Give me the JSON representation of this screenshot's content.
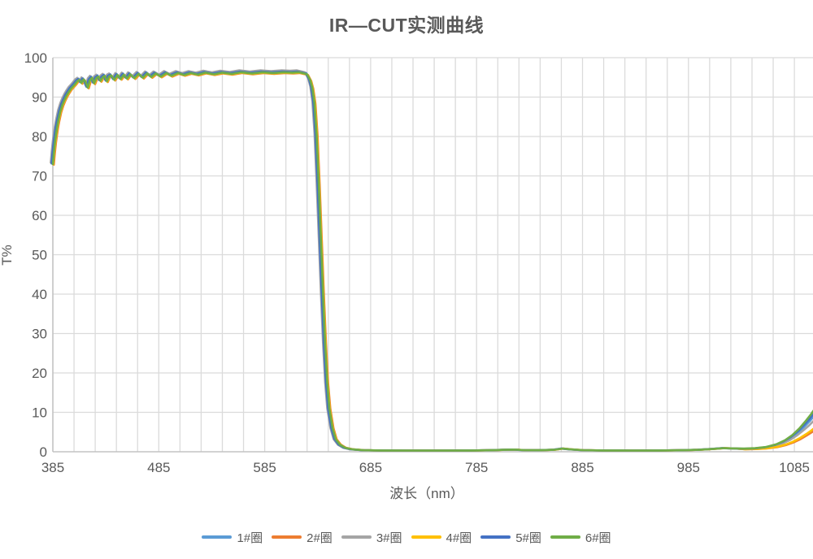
{
  "chart_data": {
    "type": "line",
    "title": "IR—CUT实测曲线",
    "xlabel": "波长（nm）",
    "ylabel": "T%",
    "xlim": [
      385,
      1104
    ],
    "ylim": [
      0,
      100
    ],
    "x_ticks": [
      385,
      485,
      585,
      685,
      785,
      885,
      985,
      1085
    ],
    "y_ticks": [
      0,
      10,
      20,
      30,
      40,
      50,
      60,
      70,
      80,
      90,
      100
    ],
    "x_minor_grid_step_nm": 20,
    "grid": true,
    "legend_position": "bottom",
    "colors": {
      "grid": "#DBDBDB",
      "axis": "#C3C3C3",
      "text": "#595959",
      "background": "#FFFFFF"
    },
    "series": [
      {
        "name": "1#圈",
        "color": "#5B9BD5",
        "dx": -0.8,
        "dy": 0.3,
        "tail": 0.82
      },
      {
        "name": "2#圈",
        "color": "#ED7D31",
        "dx": 0.9,
        "dy": -0.2,
        "tail": 0.5
      },
      {
        "name": "3#圈",
        "color": "#A5A5A5",
        "dx": -2.0,
        "dy": 0.5,
        "tail": 0.68
      },
      {
        "name": "4#圈",
        "color": "#FFC000",
        "dx": 0.4,
        "dy": -0.1,
        "tail": 0.55
      },
      {
        "name": "5#圈",
        "color": "#4472C4",
        "dx": -1.2,
        "dy": 0.2,
        "tail": 0.88
      },
      {
        "name": "6#圈",
        "color": "#70AD47",
        "dx": 0.0,
        "dy": 0.0,
        "tail": 1.0
      }
    ],
    "base_curve": [
      [
        385,
        73
      ],
      [
        386,
        76
      ],
      [
        387,
        78.5
      ],
      [
        388,
        80.5
      ],
      [
        389,
        82.3
      ],
      [
        390,
        83.8
      ],
      [
        392,
        86.3
      ],
      [
        394,
        88
      ],
      [
        396,
        89.3
      ],
      [
        398,
        90.4
      ],
      [
        400,
        91.3
      ],
      [
        402,
        92.1
      ],
      [
        404,
        92.7
      ],
      [
        406,
        93.3
      ],
      [
        408,
        94.0
      ],
      [
        410,
        94.4
      ],
      [
        412,
        93.6
      ],
      [
        414,
        94.5
      ],
      [
        416,
        93.8
      ],
      [
        418,
        92.4
      ],
      [
        420,
        94.3
      ],
      [
        422,
        94.9
      ],
      [
        424,
        93.5
      ],
      [
        426,
        94.8
      ],
      [
        428,
        95.2
      ],
      [
        430,
        94.1
      ],
      [
        432,
        95.0
      ],
      [
        434,
        95.4
      ],
      [
        436,
        94.0
      ],
      [
        438,
        95.2
      ],
      [
        440,
        95.5
      ],
      [
        443,
        94.4
      ],
      [
        446,
        95.6
      ],
      [
        449,
        94.6
      ],
      [
        452,
        95.7
      ],
      [
        455,
        94.7
      ],
      [
        458,
        95.8
      ],
      [
        462,
        94.8
      ],
      [
        466,
        95.9
      ],
      [
        470,
        94.9
      ],
      [
        474,
        96.0
      ],
      [
        478,
        95.1
      ],
      [
        482,
        96.0
      ],
      [
        487,
        95.2
      ],
      [
        492,
        96.1
      ],
      [
        497,
        95.4
      ],
      [
        503,
        96.1
      ],
      [
        509,
        95.6
      ],
      [
        515,
        96.1
      ],
      [
        522,
        95.7
      ],
      [
        529,
        96.2
      ],
      [
        537,
        95.8
      ],
      [
        545,
        96.2
      ],
      [
        554,
        95.9
      ],
      [
        563,
        96.3
      ],
      [
        573,
        96.0
      ],
      [
        583,
        96.3
      ],
      [
        593,
        96.1
      ],
      [
        603,
        96.3
      ],
      [
        611,
        96.2
      ],
      [
        617,
        96.3
      ],
      [
        622,
        96.0
      ],
      [
        625,
        95.8
      ],
      [
        628,
        94.3
      ],
      [
        630,
        92.3
      ],
      [
        632,
        88.5
      ],
      [
        634,
        80.5
      ],
      [
        636,
        68
      ],
      [
        638,
        54
      ],
      [
        640,
        40
      ],
      [
        642,
        27.5
      ],
      [
        644,
        17.5
      ],
      [
        646,
        11
      ],
      [
        649,
        6
      ],
      [
        652,
        3.2
      ],
      [
        656,
        1.8
      ],
      [
        661,
        1.0
      ],
      [
        668,
        0.6
      ],
      [
        678,
        0.4
      ],
      [
        695,
        0.32
      ],
      [
        720,
        0.3
      ],
      [
        750,
        0.3
      ],
      [
        780,
        0.33
      ],
      [
        800,
        0.4
      ],
      [
        812,
        0.5
      ],
      [
        820,
        0.55
      ],
      [
        830,
        0.42
      ],
      [
        845,
        0.4
      ],
      [
        858,
        0.5
      ],
      [
        866,
        0.8
      ],
      [
        874,
        0.6
      ],
      [
        885,
        0.42
      ],
      [
        905,
        0.33
      ],
      [
        930,
        0.3
      ],
      [
        958,
        0.33
      ],
      [
        980,
        0.4
      ],
      [
        995,
        0.5
      ],
      [
        1008,
        0.7
      ],
      [
        1018,
        0.9
      ],
      [
        1028,
        0.85
      ],
      [
        1038,
        0.8
      ],
      [
        1048,
        0.9
      ],
      [
        1058,
        1.2
      ],
      [
        1068,
        1.9
      ],
      [
        1076,
        2.9
      ],
      [
        1083,
        4.2
      ],
      [
        1090,
        6.0
      ],
      [
        1096,
        7.9
      ],
      [
        1101,
        9.6
      ],
      [
        1105,
        11.2
      ]
    ]
  }
}
